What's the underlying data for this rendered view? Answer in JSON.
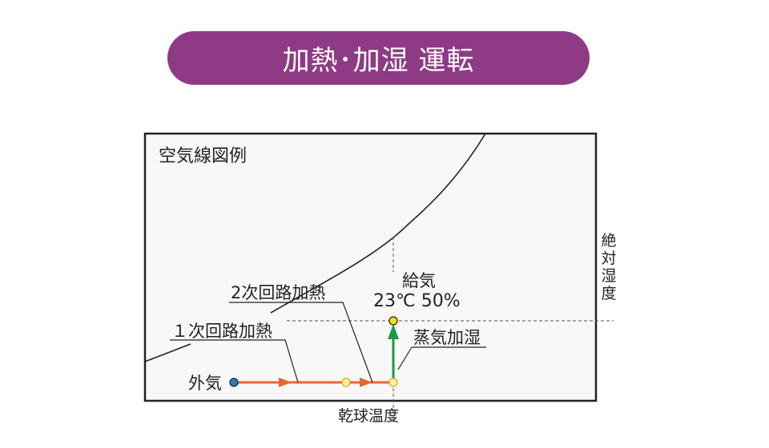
{
  "title": "加熱･加湿 運転",
  "diagram": {
    "legend": "空気線図例",
    "x_axis_label": "乾球温度",
    "y_axis_label": "絶対湿度",
    "points": {
      "outside": "外気",
      "supply": "給気",
      "supply_condition": "23℃ 50%"
    },
    "processes": {
      "primary_heating": "１次回路加熱",
      "secondary_heating": "2次回路加熱",
      "steam_humidification": "蒸気加湿"
    },
    "colors": {
      "title_bg": "#8e3a85",
      "heating_line": "#e8662e",
      "humidify_line": "#1a9a4a",
      "outside_point": "#1f7fc4",
      "supply_point": "#f5e400",
      "intermediate_point": "#fff3a0"
    }
  }
}
